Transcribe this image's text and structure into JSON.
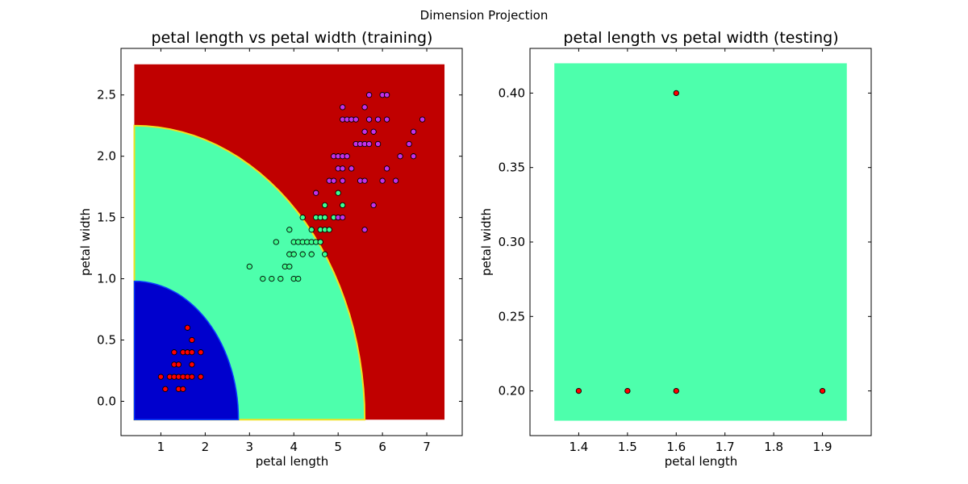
{
  "figure": {
    "suptitle": "Dimension Projection",
    "colors": {
      "setosa_region": "#0000cd",
      "versicolor_region": "#4dffac",
      "virginica_region": "#c00000",
      "boundary": "#f0e020",
      "setosa_point": "#ff0000",
      "versicolor_point": "#3dff90",
      "virginica_point": "#c430e8"
    }
  },
  "chart_data": [
    {
      "type": "scatter",
      "title": "petal length vs  petal width (training)",
      "xlabel": "petal length",
      "ylabel": "petal width",
      "xlim": [
        0.1,
        7.8
      ],
      "ylim": [
        -0.28,
        2.88
      ],
      "xticks": [
        "1",
        "2",
        "3",
        "4",
        "5",
        "6",
        "7"
      ],
      "yticks": [
        "0.0",
        "0.5",
        "1.0",
        "1.5",
        "2.0",
        "2.5"
      ],
      "grid": false,
      "decision_regions": {
        "x_range": [
          0.4,
          7.4
        ],
        "y_range": [
          -0.15,
          2.75
        ],
        "regions": [
          {
            "class": "virginica",
            "color": "#c00000"
          },
          {
            "class": "versicolor",
            "color": "#4dffac"
          },
          {
            "class": "setosa",
            "color": "#0000cd"
          }
        ]
      },
      "series": [
        {
          "class": "setosa",
          "color": "#ff0000",
          "points": [
            [
              1.0,
              0.2
            ],
            [
              1.1,
              0.1
            ],
            [
              1.2,
              0.2
            ],
            [
              1.3,
              0.2
            ],
            [
              1.3,
              0.3
            ],
            [
              1.3,
              0.4
            ],
            [
              1.4,
              0.1
            ],
            [
              1.4,
              0.2
            ],
            [
              1.4,
              0.3
            ],
            [
              1.5,
              0.1
            ],
            [
              1.5,
              0.2
            ],
            [
              1.5,
              0.4
            ],
            [
              1.6,
              0.2
            ],
            [
              1.6,
              0.4
            ],
            [
              1.6,
              0.6
            ],
            [
              1.7,
              0.2
            ],
            [
              1.7,
              0.3
            ],
            [
              1.7,
              0.4
            ],
            [
              1.7,
              0.5
            ],
            [
              1.9,
              0.2
            ],
            [
              1.9,
              0.4
            ]
          ]
        },
        {
          "class": "versicolor",
          "color": "#3dff90",
          "points": [
            [
              3.0,
              1.1
            ],
            [
              3.3,
              1.0
            ],
            [
              3.5,
              1.0
            ],
            [
              3.6,
              1.3
            ],
            [
              3.7,
              1.0
            ],
            [
              3.8,
              1.1
            ],
            [
              3.9,
              1.1
            ],
            [
              3.9,
              1.2
            ],
            [
              3.9,
              1.4
            ],
            [
              4.0,
              1.0
            ],
            [
              4.0,
              1.2
            ],
            [
              4.0,
              1.3
            ],
            [
              4.1,
              1.0
            ],
            [
              4.1,
              1.3
            ],
            [
              4.2,
              1.2
            ],
            [
              4.2,
              1.3
            ],
            [
              4.2,
              1.5
            ],
            [
              4.3,
              1.3
            ],
            [
              4.4,
              1.2
            ],
            [
              4.4,
              1.3
            ],
            [
              4.4,
              1.4
            ],
            [
              4.5,
              1.3
            ],
            [
              4.5,
              1.5
            ],
            [
              4.6,
              1.3
            ],
            [
              4.6,
              1.4
            ],
            [
              4.6,
              1.5
            ],
            [
              4.7,
              1.2
            ],
            [
              4.7,
              1.4
            ],
            [
              4.7,
              1.5
            ],
            [
              4.7,
              1.6
            ],
            [
              4.8,
              1.4
            ],
            [
              4.9,
              1.5
            ],
            [
              5.0,
              1.5
            ],
            [
              5.0,
              1.7
            ],
            [
              5.1,
              1.6
            ]
          ]
        },
        {
          "class": "virginica",
          "color": "#c430e8",
          "points": [
            [
              4.5,
              1.7
            ],
            [
              4.8,
              1.8
            ],
            [
              4.9,
              1.8
            ],
            [
              4.9,
              2.0
            ],
            [
              5.0,
              1.5
            ],
            [
              5.0,
              1.9
            ],
            [
              5.0,
              2.0
            ],
            [
              5.1,
              1.5
            ],
            [
              5.1,
              1.8
            ],
            [
              5.1,
              1.9
            ],
            [
              5.1,
              2.0
            ],
            [
              5.1,
              2.3
            ],
            [
              5.1,
              2.4
            ],
            [
              5.2,
              2.0
            ],
            [
              5.2,
              2.3
            ],
            [
              5.3,
              1.9
            ],
            [
              5.3,
              2.3
            ],
            [
              5.4,
              2.1
            ],
            [
              5.4,
              2.3
            ],
            [
              5.5,
              1.8
            ],
            [
              5.5,
              2.1
            ],
            [
              5.6,
              1.4
            ],
            [
              5.6,
              1.8
            ],
            [
              5.6,
              2.1
            ],
            [
              5.6,
              2.2
            ],
            [
              5.6,
              2.4
            ],
            [
              5.7,
              2.1
            ],
            [
              5.7,
              2.3
            ],
            [
              5.7,
              2.5
            ],
            [
              5.8,
              1.6
            ],
            [
              5.8,
              2.2
            ],
            [
              5.9,
              2.1
            ],
            [
              5.9,
              2.3
            ],
            [
              6.0,
              1.8
            ],
            [
              6.0,
              2.5
            ],
            [
              6.1,
              1.9
            ],
            [
              6.1,
              2.3
            ],
            [
              6.1,
              2.5
            ],
            [
              6.3,
              1.8
            ],
            [
              6.4,
              2.0
            ],
            [
              6.6,
              2.1
            ],
            [
              6.7,
              2.0
            ],
            [
              6.7,
              2.2
            ],
            [
              6.9,
              2.3
            ]
          ]
        }
      ]
    },
    {
      "type": "scatter",
      "title": "petal length vs  petal width (testing)",
      "xlabel": "petal length",
      "ylabel": "petal width",
      "xlim": [
        1.3,
        2.0
      ],
      "ylim": [
        0.17,
        0.43
      ],
      "xticks": [
        "1.4",
        "1.5",
        "1.6",
        "1.7",
        "1.8",
        "1.9"
      ],
      "yticks": [
        "0.20",
        "0.25",
        "0.30",
        "0.35",
        "0.40"
      ],
      "grid": false,
      "decision_regions": {
        "x_range": [
          1.35,
          1.95
        ],
        "y_range": [
          0.18,
          0.42
        ],
        "regions": [
          {
            "class": "versicolor",
            "color": "#4dffac"
          }
        ]
      },
      "series": [
        {
          "class": "setosa",
          "color": "#ff0000",
          "points": [
            [
              1.4,
              0.2
            ],
            [
              1.5,
              0.2
            ],
            [
              1.6,
              0.2
            ],
            [
              1.6,
              0.4
            ],
            [
              1.9,
              0.2
            ]
          ]
        }
      ]
    }
  ]
}
